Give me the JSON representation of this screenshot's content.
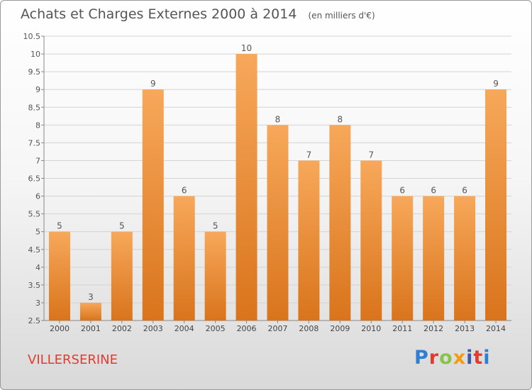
{
  "header": {
    "title": "Achats et Charges Externes 2000 à 2014",
    "unit": "(en milliers d'€)"
  },
  "footer": {
    "place": "VILLERSERINE",
    "logo": "Proxiti"
  },
  "colors": {
    "bar_light": "#f7a85a",
    "bar_dark": "#d9741c",
    "place": "#e33b2f",
    "logo": [
      "#2f7fd1",
      "#e33b2f",
      "#8bc34a",
      "#f39c12",
      "#3b5ba5",
      "#e33b2f",
      "#2f7fd1"
    ]
  },
  "chart_data": {
    "type": "bar",
    "categories": [
      "2000",
      "2001",
      "2002",
      "2003",
      "2004",
      "2005",
      "2006",
      "2007",
      "2008",
      "2009",
      "2010",
      "2011",
      "2012",
      "2013",
      "2014"
    ],
    "values": [
      5,
      3,
      5,
      9,
      6,
      5,
      10,
      8,
      7,
      8,
      7,
      6,
      6,
      6,
      9
    ],
    "data_labels": [
      "5",
      "3",
      "5",
      "9",
      "6",
      "5",
      "10",
      "8",
      "7",
      "8",
      "7",
      "6",
      "6",
      "6",
      "9"
    ],
    "ylim": [
      2.5,
      10.5
    ],
    "yticks": [
      "2.5",
      "3",
      "3.5",
      "4",
      "4.5",
      "5",
      "5.5",
      "6",
      "6.5",
      "7",
      "7.5",
      "8",
      "8.5",
      "9",
      "9.5",
      "10",
      "10.5"
    ],
    "title": "Achats et Charges Externes 2000 à 2014",
    "xlabel": "",
    "ylabel": "",
    "grid": true
  }
}
